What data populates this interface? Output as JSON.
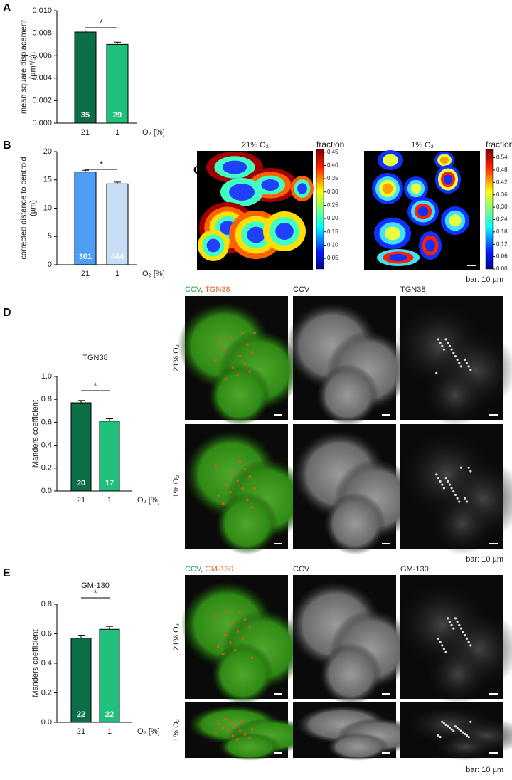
{
  "figure_labels": [
    "A",
    "B",
    "C",
    "D",
    "E"
  ],
  "chart_data": [
    {
      "type": "bar",
      "y_label": [
        "mean square displacement",
        "(µm²/s)"
      ],
      "x_label": "O₂ [%]",
      "categories": [
        "21",
        "1"
      ],
      "values": [
        0.0081,
        0.007
      ],
      "errors": [
        0.0001,
        0.0002
      ],
      "colors": [
        "#0c6e47",
        "#1ec07c"
      ],
      "n_labels": [
        "35",
        "29"
      ],
      "significance": "*",
      "ylim": [
        0,
        0.01
      ],
      "yticks": [
        {
          "value": 0,
          "label": "0.000"
        },
        {
          "value": 0.002,
          "label": "0.002"
        },
        {
          "value": 0.004,
          "label": "0.004"
        },
        {
          "value": 0.006,
          "label": "0.006"
        },
        {
          "value": 0.008,
          "label": "0.008"
        },
        {
          "value": 0.01,
          "label": "0.010"
        }
      ]
    },
    {
      "type": "bar",
      "y_label": [
        "corrected distance to centroid",
        "(µm)"
      ],
      "x_label": "O₂ [%]",
      "categories": [
        "21",
        "1"
      ],
      "values": [
        16.4,
        14.3
      ],
      "errors": [
        0.3,
        0.3
      ],
      "colors": [
        "#4d9ff5",
        "#c8ddf6"
      ],
      "n_labels": [
        "301",
        "444"
      ],
      "significance": "*",
      "ylim": [
        0,
        20
      ],
      "yticks": [
        0,
        5,
        10,
        15,
        20
      ]
    },
    {
      "type": "bar",
      "title": "TGN38",
      "y_label": [
        "Manders coefficient"
      ],
      "x_label": "O₂ [%]",
      "categories": [
        "21",
        "1"
      ],
      "values": [
        0.77,
        0.61
      ],
      "errors": [
        0.02,
        0.02
      ],
      "colors": [
        "#0c6e47",
        "#1ec07c"
      ],
      "n_labels": [
        "20",
        "17"
      ],
      "significance": "*",
      "ylim": [
        0,
        1
      ],
      "yticks": [
        {
          "value": 0,
          "label": "0.0"
        },
        {
          "value": 0.2,
          "label": "0.2"
        },
        {
          "value": 0.4,
          "label": "0.4"
        },
        {
          "value": 0.6,
          "label": "0.6"
        },
        {
          "value": 0.8,
          "label": "0.8"
        },
        {
          "value": 1,
          "label": "1.0"
        }
      ]
    },
    {
      "type": "bar",
      "title": "GM-130",
      "y_label": [
        "Manders coefficient"
      ],
      "x_label": "O₂ [%]",
      "categories": [
        "21",
        "1"
      ],
      "values": [
        0.57,
        0.63
      ],
      "errors": [
        0.02,
        0.02
      ],
      "colors": [
        "#0c6e47",
        "#1ec07c"
      ],
      "n_labels": [
        "22",
        "22"
      ],
      "significance": "*",
      "ylim": [
        0,
        0.8
      ],
      "yticks": [
        {
          "value": 0,
          "label": "0.0"
        },
        {
          "value": 0.2,
          "label": "0.2"
        },
        {
          "value": 0.4,
          "label": "0.4"
        },
        {
          "value": 0.6,
          "label": "0.6"
        },
        {
          "value": 0.8,
          "label": "0.8"
        }
      ]
    }
  ],
  "panel_c": {
    "maps": [
      {
        "title": "21% O₂",
        "colorbar_label": "fraction",
        "clim": [
          0.01,
          0.46
        ],
        "ticks": [
          {
            "value": 0.05,
            "label": "0.05"
          },
          {
            "value": 0.1,
            "label": "0.10"
          },
          {
            "value": 0.15,
            "label": "0.15"
          },
          {
            "value": 0.2,
            "label": "0.20"
          },
          {
            "value": 0.25,
            "label": "0.25"
          },
          {
            "value": 0.3,
            "label": "0.30"
          },
          {
            "value": 0.35,
            "label": "0.35"
          },
          {
            "value": 0.4,
            "label": "0.40"
          },
          {
            "value": 0.45,
            "label": "0.45"
          }
        ]
      },
      {
        "title": "1% O₂",
        "colorbar_label": "fraction",
        "clim": [
          0,
          0.58
        ],
        "ticks": [
          {
            "value": 0,
            "label": "0.00"
          },
          {
            "value": 0.06,
            "label": "0.06"
          },
          {
            "value": 0.12,
            "label": "0.12"
          },
          {
            "value": 0.18,
            "label": "0.18"
          },
          {
            "value": 0.24,
            "label": "0.24"
          },
          {
            "value": 0.3,
            "label": "0.30"
          },
          {
            "value": 0.36,
            "label": "0.36"
          },
          {
            "value": 0.42,
            "label": "0.42"
          },
          {
            "value": 0.48,
            "label": "0.48"
          },
          {
            "value": 0.54,
            "label": "0.54"
          }
        ]
      }
    ],
    "scale_note": "bar: 10 µm"
  },
  "panel_d": {
    "merge_header": [
      "CCV",
      ", ",
      "TGN38"
    ],
    "channels": [
      "CCV",
      "TGN38"
    ],
    "rows": [
      "21% O₂",
      "1% O₂"
    ],
    "scale_note": "bar: 10 µm"
  },
  "panel_e": {
    "merge_header": [
      "CCV",
      ", ",
      "GM-130"
    ],
    "channels": [
      "CCV",
      "GM-130"
    ],
    "rows": [
      "21% O₂",
      "1% O₂"
    ],
    "scale_note": "bar: 10 µm"
  }
}
